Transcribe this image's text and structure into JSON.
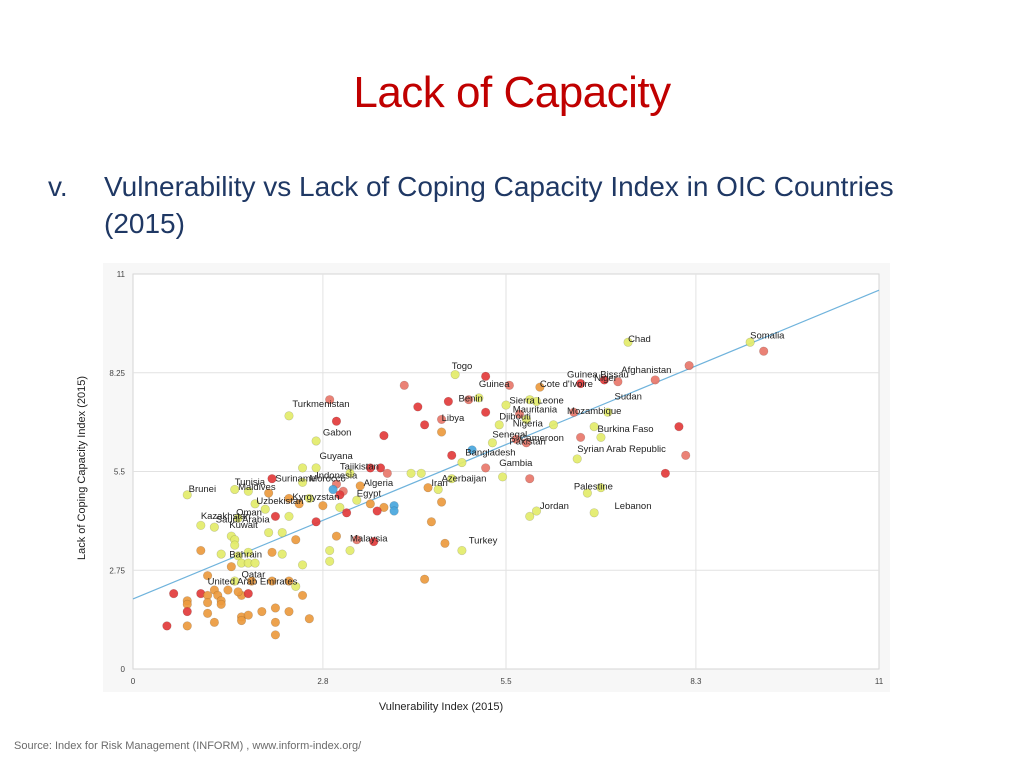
{
  "slide": {
    "title": "Lack of Capacity",
    "subtitle_marker": "v.",
    "subtitle": "Vulnerability vs Lack of Coping Capacity Index in OIC Countries (2015)",
    "source": "Source: Index for Risk Management (INFORM) , www.inform-index.org/"
  },
  "colors": {
    "title": "#c00000",
    "subtitle": "#1f3864",
    "trendline": "#6fb3dc",
    "dot_red": "#e23b3b",
    "dot_salmon": "#e8776a",
    "dot_orange": "#eb9a3e",
    "dot_yellow": "#e3eb6a",
    "dot_blue": "#48a6dd"
  },
  "chart_data": {
    "type": "scatter",
    "xlabel": "Vulnerability Index (2015)",
    "ylabel": "Lack of Coping Capacity Index (2015)",
    "xlim": [
      0,
      11
    ],
    "ylim": [
      0,
      11
    ],
    "x_ticks": [
      "0",
      "2.8",
      "5.5",
      "8.3",
      "11"
    ],
    "y_ticks": [
      "0",
      "2.75",
      "5.5",
      "8.25",
      "11"
    ],
    "grid": true,
    "trendline": {
      "x": [
        0,
        11
      ],
      "y": [
        1.95,
        10.55
      ]
    },
    "labels": [
      {
        "text": "Chad",
        "x": 7.3,
        "y": 9.1
      },
      {
        "text": "Somalia",
        "x": 9.1,
        "y": 9.2
      },
      {
        "text": "Togo",
        "x": 4.7,
        "y": 8.35
      },
      {
        "text": "Guinea Bissau",
        "x": 6.4,
        "y": 8.12
      },
      {
        "text": "Afghanistan",
        "x": 7.2,
        "y": 8.25
      },
      {
        "text": "Niger",
        "x": 6.8,
        "y": 8.02
      },
      {
        "text": "Guinea",
        "x": 5.1,
        "y": 7.85
      },
      {
        "text": "Cote d'Ivoire",
        "x": 6.0,
        "y": 7.85
      },
      {
        "text": "Benin",
        "x": 4.8,
        "y": 7.45
      },
      {
        "text": "Sudan",
        "x": 7.1,
        "y": 7.5
      },
      {
        "text": "Sierra Leone",
        "x": 5.55,
        "y": 7.4
      },
      {
        "text": "Turkmenistan",
        "x": 2.35,
        "y": 7.3
      },
      {
        "text": "Mauritania",
        "x": 5.6,
        "y": 7.15
      },
      {
        "text": "Mozambique",
        "x": 6.4,
        "y": 7.1
      },
      {
        "text": "Djibouti",
        "x": 5.4,
        "y": 6.95
      },
      {
        "text": "Libya",
        "x": 4.55,
        "y": 6.9
      },
      {
        "text": "Nigeria",
        "x": 5.6,
        "y": 6.75
      },
      {
        "text": "Burkina Faso",
        "x": 6.85,
        "y": 6.6
      },
      {
        "text": "Gabon",
        "x": 2.8,
        "y": 6.5
      },
      {
        "text": "Senegal",
        "x": 5.3,
        "y": 6.45
      },
      {
        "text": "Cameroon",
        "x": 5.7,
        "y": 6.35
      },
      {
        "text": "Pakistan",
        "x": 5.55,
        "y": 6.25
      },
      {
        "text": "Syrian Arab Republic",
        "x": 6.55,
        "y": 6.05
      },
      {
        "text": "Bangladesh",
        "x": 4.9,
        "y": 5.95
      },
      {
        "text": "Guyana",
        "x": 2.75,
        "y": 5.85
      },
      {
        "text": "Gambia",
        "x": 5.4,
        "y": 5.65
      },
      {
        "text": "Tajikistan",
        "x": 3.05,
        "y": 5.55
      },
      {
        "text": "Indonesia",
        "x": 2.7,
        "y": 5.3
      },
      {
        "text": "Suriname",
        "x": 2.1,
        "y": 5.22
      },
      {
        "text": "Morocco",
        "x": 2.6,
        "y": 5.22
      },
      {
        "text": "Azerbaijan",
        "x": 4.55,
        "y": 5.22
      },
      {
        "text": "Tunisia",
        "x": 1.5,
        "y": 5.12
      },
      {
        "text": "Algeria",
        "x": 3.4,
        "y": 5.1
      },
      {
        "text": "Iran",
        "x": 4.4,
        "y": 5.1
      },
      {
        "text": "Palestine",
        "x": 6.5,
        "y": 5.0
      },
      {
        "text": "Maldives",
        "x": 1.55,
        "y": 4.98
      },
      {
        "text": "Brunei",
        "x": 0.82,
        "y": 4.93
      },
      {
        "text": "Egypt",
        "x": 3.3,
        "y": 4.8
      },
      {
        "text": "Kyrgyzstan",
        "x": 2.35,
        "y": 4.7
      },
      {
        "text": "Uzbekistan",
        "x": 1.82,
        "y": 4.6
      },
      {
        "text": "Jordan",
        "x": 6.0,
        "y": 4.45
      },
      {
        "text": "Lebanon",
        "x": 7.1,
        "y": 4.45
      },
      {
        "text": "Oman",
        "x": 1.52,
        "y": 4.28
      },
      {
        "text": "Kazakhstan",
        "x": 1.0,
        "y": 4.18
      },
      {
        "text": "Saudi Arabia",
        "x": 1.22,
        "y": 4.08
      },
      {
        "text": "Kuwait",
        "x": 1.42,
        "y": 3.92
      },
      {
        "text": "Malaysia",
        "x": 3.2,
        "y": 3.55
      },
      {
        "text": "Turkey",
        "x": 4.95,
        "y": 3.5
      },
      {
        "text": "Bahrain",
        "x": 1.42,
        "y": 3.1
      },
      {
        "text": "Qatar",
        "x": 1.6,
        "y": 2.55
      },
      {
        "text": "United Arab Emirates",
        "x": 1.1,
        "y": 2.35
      }
    ],
    "points": [
      {
        "x": 7.3,
        "y": 9.1,
        "c": "yellow"
      },
      {
        "x": 9.1,
        "y": 9.1,
        "c": "yellow"
      },
      {
        "x": 9.3,
        "y": 8.85,
        "c": "salmon"
      },
      {
        "x": 8.2,
        "y": 8.45,
        "c": "salmon"
      },
      {
        "x": 7.7,
        "y": 8.05,
        "c": "salmon"
      },
      {
        "x": 7.15,
        "y": 8.0,
        "c": "salmon"
      },
      {
        "x": 6.95,
        "y": 8.05,
        "c": "red"
      },
      {
        "x": 6.6,
        "y": 7.95,
        "c": "red"
      },
      {
        "x": 4.75,
        "y": 8.2,
        "c": "yellow"
      },
      {
        "x": 5.2,
        "y": 8.15,
        "c": "red"
      },
      {
        "x": 5.55,
        "y": 7.9,
        "c": "salmon"
      },
      {
        "x": 6.0,
        "y": 7.85,
        "c": "orange"
      },
      {
        "x": 4.0,
        "y": 7.9,
        "c": "salmon"
      },
      {
        "x": 2.9,
        "y": 7.5,
        "c": "salmon"
      },
      {
        "x": 4.65,
        "y": 7.45,
        "c": "red"
      },
      {
        "x": 4.95,
        "y": 7.5,
        "c": "salmon"
      },
      {
        "x": 5.1,
        "y": 7.55,
        "c": "yellow"
      },
      {
        "x": 5.5,
        "y": 7.35,
        "c": "yellow"
      },
      {
        "x": 5.95,
        "y": 7.45,
        "c": "yellow"
      },
      {
        "x": 5.85,
        "y": 7.5,
        "c": "yellow"
      },
      {
        "x": 6.5,
        "y": 7.15,
        "c": "salmon"
      },
      {
        "x": 7.0,
        "y": 7.15,
        "c": "yellow"
      },
      {
        "x": 4.2,
        "y": 7.3,
        "c": "red"
      },
      {
        "x": 5.2,
        "y": 7.15,
        "c": "red"
      },
      {
        "x": 5.7,
        "y": 7.1,
        "c": "salmon"
      },
      {
        "x": 5.8,
        "y": 6.95,
        "c": "yellow"
      },
      {
        "x": 6.2,
        "y": 6.8,
        "c": "yellow"
      },
      {
        "x": 6.8,
        "y": 6.75,
        "c": "yellow"
      },
      {
        "x": 8.05,
        "y": 6.75,
        "c": "red"
      },
      {
        "x": 2.3,
        "y": 7.05,
        "c": "yellow"
      },
      {
        "x": 3.0,
        "y": 6.9,
        "c": "red"
      },
      {
        "x": 4.3,
        "y": 6.8,
        "c": "red"
      },
      {
        "x": 4.55,
        "y": 6.95,
        "c": "salmon"
      },
      {
        "x": 4.55,
        "y": 6.6,
        "c": "orange"
      },
      {
        "x": 5.4,
        "y": 6.8,
        "c": "yellow"
      },
      {
        "x": 2.7,
        "y": 6.35,
        "c": "yellow"
      },
      {
        "x": 3.7,
        "y": 6.5,
        "c": "red"
      },
      {
        "x": 5.65,
        "y": 6.4,
        "c": "salmon"
      },
      {
        "x": 6.6,
        "y": 6.45,
        "c": "salmon"
      },
      {
        "x": 6.9,
        "y": 6.45,
        "c": "yellow"
      },
      {
        "x": 5.3,
        "y": 6.3,
        "c": "yellow"
      },
      {
        "x": 5.8,
        "y": 6.3,
        "c": "salmon"
      },
      {
        "x": 5.0,
        "y": 6.1,
        "c": "blue"
      },
      {
        "x": 4.7,
        "y": 5.95,
        "c": "red"
      },
      {
        "x": 4.85,
        "y": 5.75,
        "c": "yellow"
      },
      {
        "x": 6.55,
        "y": 5.85,
        "c": "yellow"
      },
      {
        "x": 8.15,
        "y": 5.95,
        "c": "salmon"
      },
      {
        "x": 7.85,
        "y": 5.45,
        "c": "red"
      },
      {
        "x": 5.2,
        "y": 5.6,
        "c": "salmon"
      },
      {
        "x": 5.45,
        "y": 5.35,
        "c": "yellow"
      },
      {
        "x": 5.85,
        "y": 5.3,
        "c": "salmon"
      },
      {
        "x": 2.5,
        "y": 5.6,
        "c": "yellow"
      },
      {
        "x": 2.7,
        "y": 5.6,
        "c": "yellow"
      },
      {
        "x": 3.5,
        "y": 5.6,
        "c": "red"
      },
      {
        "x": 3.65,
        "y": 5.6,
        "c": "red"
      },
      {
        "x": 3.2,
        "y": 5.45,
        "c": "yellow"
      },
      {
        "x": 3.75,
        "y": 5.45,
        "c": "salmon"
      },
      {
        "x": 4.1,
        "y": 5.45,
        "c": "yellow"
      },
      {
        "x": 4.25,
        "y": 5.45,
        "c": "yellow"
      },
      {
        "x": 4.7,
        "y": 5.3,
        "c": "yellow"
      },
      {
        "x": 2.05,
        "y": 5.3,
        "c": "red"
      },
      {
        "x": 2.5,
        "y": 5.2,
        "c": "yellow"
      },
      {
        "x": 3.0,
        "y": 5.15,
        "c": "salmon"
      },
      {
        "x": 3.35,
        "y": 5.1,
        "c": "orange"
      },
      {
        "x": 4.35,
        "y": 5.05,
        "c": "orange"
      },
      {
        "x": 4.5,
        "y": 5.0,
        "c": "yellow"
      },
      {
        "x": 2.95,
        "y": 5.0,
        "c": "blue"
      },
      {
        "x": 3.1,
        "y": 4.95,
        "c": "salmon"
      },
      {
        "x": 3.05,
        "y": 4.85,
        "c": "red"
      },
      {
        "x": 6.9,
        "y": 5.05,
        "c": "yellow"
      },
      {
        "x": 6.7,
        "y": 4.9,
        "c": "yellow"
      },
      {
        "x": 1.5,
        "y": 5.0,
        "c": "yellow"
      },
      {
        "x": 1.7,
        "y": 4.95,
        "c": "yellow"
      },
      {
        "x": 0.8,
        "y": 4.85,
        "c": "yellow"
      },
      {
        "x": 2.0,
        "y": 4.9,
        "c": "orange"
      },
      {
        "x": 2.3,
        "y": 4.75,
        "c": "orange"
      },
      {
        "x": 2.6,
        "y": 4.75,
        "c": "yellow"
      },
      {
        "x": 2.45,
        "y": 4.6,
        "c": "orange"
      },
      {
        "x": 2.8,
        "y": 4.55,
        "c": "orange"
      },
      {
        "x": 3.3,
        "y": 4.7,
        "c": "yellow"
      },
      {
        "x": 3.5,
        "y": 4.6,
        "c": "orange"
      },
      {
        "x": 3.7,
        "y": 4.5,
        "c": "orange"
      },
      {
        "x": 3.85,
        "y": 4.55,
        "c": "blue"
      },
      {
        "x": 3.85,
        "y": 4.4,
        "c": "blue"
      },
      {
        "x": 3.6,
        "y": 4.4,
        "c": "red"
      },
      {
        "x": 4.55,
        "y": 4.65,
        "c": "orange"
      },
      {
        "x": 3.05,
        "y": 4.5,
        "c": "yellow"
      },
      {
        "x": 3.15,
        "y": 4.35,
        "c": "red"
      },
      {
        "x": 1.8,
        "y": 4.6,
        "c": "yellow"
      },
      {
        "x": 1.95,
        "y": 4.45,
        "c": "yellow"
      },
      {
        "x": 5.95,
        "y": 4.4,
        "c": "yellow"
      },
      {
        "x": 5.85,
        "y": 4.25,
        "c": "yellow"
      },
      {
        "x": 6.8,
        "y": 4.35,
        "c": "yellow"
      },
      {
        "x": 1.55,
        "y": 4.2,
        "c": "yellow"
      },
      {
        "x": 2.1,
        "y": 4.25,
        "c": "red"
      },
      {
        "x": 2.3,
        "y": 4.25,
        "c": "yellow"
      },
      {
        "x": 2.7,
        "y": 4.1,
        "c": "red"
      },
      {
        "x": 1.0,
        "y": 4.0,
        "c": "yellow"
      },
      {
        "x": 1.2,
        "y": 3.95,
        "c": "yellow"
      },
      {
        "x": 1.45,
        "y": 3.7,
        "c": "yellow"
      },
      {
        "x": 1.5,
        "y": 3.6,
        "c": "yellow"
      },
      {
        "x": 4.4,
        "y": 4.1,
        "c": "orange"
      },
      {
        "x": 1.5,
        "y": 3.45,
        "c": "yellow"
      },
      {
        "x": 2.0,
        "y": 3.8,
        "c": "yellow"
      },
      {
        "x": 2.2,
        "y": 3.8,
        "c": "yellow"
      },
      {
        "x": 2.4,
        "y": 3.6,
        "c": "orange"
      },
      {
        "x": 3.0,
        "y": 3.7,
        "c": "orange"
      },
      {
        "x": 3.3,
        "y": 3.6,
        "c": "salmon"
      },
      {
        "x": 3.55,
        "y": 3.55,
        "c": "red"
      },
      {
        "x": 2.9,
        "y": 3.3,
        "c": "yellow"
      },
      {
        "x": 3.2,
        "y": 3.3,
        "c": "yellow"
      },
      {
        "x": 4.6,
        "y": 3.5,
        "c": "orange"
      },
      {
        "x": 4.85,
        "y": 3.3,
        "c": "yellow"
      },
      {
        "x": 1.0,
        "y": 3.3,
        "c": "orange"
      },
      {
        "x": 1.3,
        "y": 3.2,
        "c": "yellow"
      },
      {
        "x": 1.55,
        "y": 3.15,
        "c": "yellow"
      },
      {
        "x": 1.7,
        "y": 3.25,
        "c": "yellow"
      },
      {
        "x": 2.05,
        "y": 3.25,
        "c": "orange"
      },
      {
        "x": 2.2,
        "y": 3.2,
        "c": "yellow"
      },
      {
        "x": 1.45,
        "y": 2.85,
        "c": "orange"
      },
      {
        "x": 1.6,
        "y": 2.95,
        "c": "yellow"
      },
      {
        "x": 1.7,
        "y": 2.95,
        "c": "yellow"
      },
      {
        "x": 1.8,
        "y": 2.95,
        "c": "yellow"
      },
      {
        "x": 2.9,
        "y": 3.0,
        "c": "yellow"
      },
      {
        "x": 2.5,
        "y": 2.9,
        "c": "yellow"
      },
      {
        "x": 1.1,
        "y": 2.6,
        "c": "orange"
      },
      {
        "x": 1.5,
        "y": 2.45,
        "c": "yellow"
      },
      {
        "x": 1.75,
        "y": 2.45,
        "c": "orange"
      },
      {
        "x": 2.05,
        "y": 2.45,
        "c": "orange"
      },
      {
        "x": 2.3,
        "y": 2.45,
        "c": "orange"
      },
      {
        "x": 2.4,
        "y": 2.3,
        "c": "yellow"
      },
      {
        "x": 4.3,
        "y": 2.5,
        "c": "orange"
      },
      {
        "x": 1.2,
        "y": 2.2,
        "c": "orange"
      },
      {
        "x": 1.4,
        "y": 2.2,
        "c": "orange"
      },
      {
        "x": 0.6,
        "y": 2.1,
        "c": "red"
      },
      {
        "x": 1.0,
        "y": 2.1,
        "c": "red"
      },
      {
        "x": 1.1,
        "y": 2.05,
        "c": "orange"
      },
      {
        "x": 1.25,
        "y": 2.05,
        "c": "orange"
      },
      {
        "x": 1.6,
        "y": 2.05,
        "c": "orange"
      },
      {
        "x": 1.7,
        "y": 2.1,
        "c": "red"
      },
      {
        "x": 1.55,
        "y": 2.15,
        "c": "orange"
      },
      {
        "x": 2.5,
        "y": 2.05,
        "c": "orange"
      },
      {
        "x": 0.8,
        "y": 1.9,
        "c": "orange"
      },
      {
        "x": 0.8,
        "y": 1.8,
        "c": "orange"
      },
      {
        "x": 1.1,
        "y": 1.85,
        "c": "orange"
      },
      {
        "x": 1.3,
        "y": 1.9,
        "c": "orange"
      },
      {
        "x": 1.3,
        "y": 1.8,
        "c": "orange"
      },
      {
        "x": 0.8,
        "y": 1.6,
        "c": "red"
      },
      {
        "x": 1.1,
        "y": 1.55,
        "c": "orange"
      },
      {
        "x": 1.6,
        "y": 1.45,
        "c": "orange"
      },
      {
        "x": 1.6,
        "y": 1.35,
        "c": "orange"
      },
      {
        "x": 1.7,
        "y": 1.5,
        "c": "orange"
      },
      {
        "x": 1.9,
        "y": 1.6,
        "c": "orange"
      },
      {
        "x": 2.1,
        "y": 1.7,
        "c": "orange"
      },
      {
        "x": 2.3,
        "y": 1.6,
        "c": "orange"
      },
      {
        "x": 2.1,
        "y": 1.3,
        "c": "orange"
      },
      {
        "x": 2.6,
        "y": 1.4,
        "c": "orange"
      },
      {
        "x": 0.5,
        "y": 1.2,
        "c": "red"
      },
      {
        "x": 0.8,
        "y": 1.2,
        "c": "orange"
      },
      {
        "x": 1.2,
        "y": 1.3,
        "c": "orange"
      },
      {
        "x": 2.1,
        "y": 0.95,
        "c": "orange"
      }
    ]
  }
}
